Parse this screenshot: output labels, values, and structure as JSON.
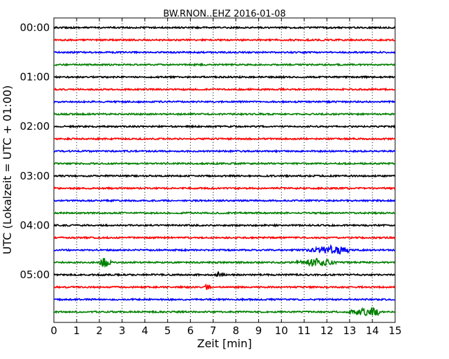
{
  "chart_data": {
    "type": "line",
    "title": "BW.RNON..EHZ 2016-01-08",
    "xlabel": "Zeit  [min]",
    "ylabel": "UTC (Lokalzeit = UTC + 01:00)",
    "xlim": [
      0,
      15
    ],
    "x_ticks": [
      "0",
      "1",
      "2",
      "3",
      "4",
      "5",
      "6",
      "7",
      "8",
      "9",
      "10",
      "11",
      "12",
      "13",
      "14",
      "15"
    ],
    "y_ticks": [
      "00:00",
      "01:00",
      "02:00",
      "03:00",
      "04:00",
      "05:00"
    ],
    "grid": "vertical dotted",
    "colors": [
      "#000000",
      "#ff0000",
      "#0000ff",
      "#008000"
    ],
    "traces": [
      {
        "start": "00:00",
        "color": "#000000",
        "events": []
      },
      {
        "start": "00:15",
        "color": "#ff0000",
        "events": []
      },
      {
        "start": "00:30",
        "color": "#0000ff",
        "events": []
      },
      {
        "start": "00:45",
        "color": "#008000",
        "events": []
      },
      {
        "start": "01:00",
        "color": "#000000",
        "events": []
      },
      {
        "start": "01:15",
        "color": "#ff0000",
        "events": []
      },
      {
        "start": "01:30",
        "color": "#0000ff",
        "events": []
      },
      {
        "start": "01:45",
        "color": "#008000",
        "events": []
      },
      {
        "start": "02:00",
        "color": "#000000",
        "events": []
      },
      {
        "start": "02:15",
        "color": "#ff0000",
        "events": []
      },
      {
        "start": "02:30",
        "color": "#0000ff",
        "events": []
      },
      {
        "start": "02:45",
        "color": "#008000",
        "events": []
      },
      {
        "start": "03:00",
        "color": "#000000",
        "events": []
      },
      {
        "start": "03:15",
        "color": "#ff0000",
        "events": []
      },
      {
        "start": "03:30",
        "color": "#0000ff",
        "events": []
      },
      {
        "start": "03:45",
        "color": "#008000",
        "events": []
      },
      {
        "start": "04:00",
        "color": "#000000",
        "events": []
      },
      {
        "start": "04:15",
        "color": "#ff0000",
        "events": []
      },
      {
        "start": "04:30",
        "color": "#0000ff",
        "events": [
          {
            "start": 11.0,
            "end": 13.0,
            "peak": 12.3
          }
        ]
      },
      {
        "start": "04:45",
        "color": "#008000",
        "events": [
          {
            "start": 2.0,
            "end": 2.6,
            "peak": 2.2
          },
          {
            "start": 10.5,
            "end": 12.5,
            "peak": 11.5
          }
        ]
      },
      {
        "start": "05:00",
        "color": "#000000",
        "events": [
          {
            "start": 7.1,
            "end": 7.6,
            "peak": 7.3
          }
        ]
      },
      {
        "start": "05:15",
        "color": "#ff0000",
        "events": [
          {
            "start": 6.6,
            "end": 6.9,
            "peak": 6.75
          }
        ]
      },
      {
        "start": "05:30",
        "color": "#0000ff",
        "events": []
      },
      {
        "start": "05:45",
        "color": "#008000",
        "events": [
          {
            "start": 12.8,
            "end": 14.3,
            "peak": 13.8
          }
        ]
      }
    ]
  }
}
